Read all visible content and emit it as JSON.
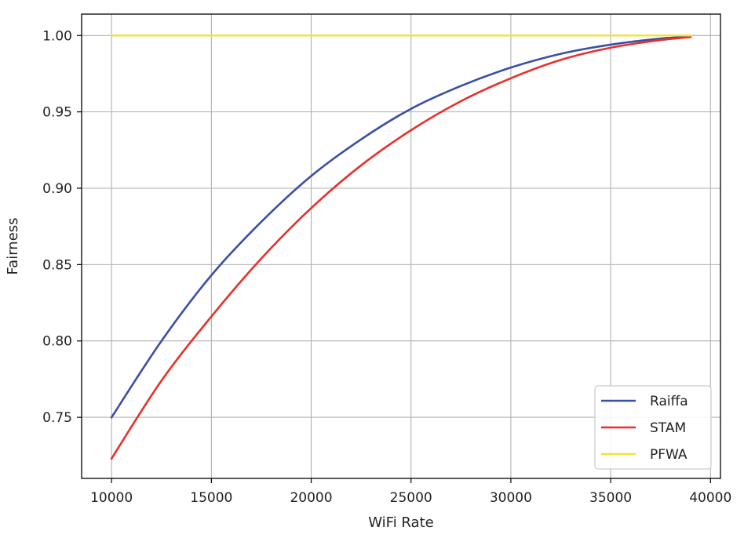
{
  "chart_data": {
    "type": "line",
    "title": "",
    "xlabel": "WiFi Rate",
    "ylabel": "Fairness",
    "xlim": [
      8500,
      40500
    ],
    "ylim": [
      0.71,
      1.014
    ],
    "xticks": [
      10000,
      15000,
      20000,
      25000,
      30000,
      35000,
      40000
    ],
    "yticks": [
      0.75,
      0.8,
      0.85,
      0.9,
      0.95,
      1.0
    ],
    "ytick_labels": [
      "0.75",
      "0.80",
      "0.85",
      "0.90",
      "0.95",
      "1.00"
    ],
    "grid": true,
    "legend_position": "lower-right",
    "series": [
      {
        "name": "Raiffa",
        "color": "#3a4fa6",
        "x": [
          10000,
          12500,
          15000,
          17500,
          20000,
          22500,
          25000,
          27500,
          30000,
          32500,
          35000,
          37500,
          39000
        ],
        "y": [
          0.75,
          0.8,
          0.843,
          0.878,
          0.908,
          0.932,
          0.952,
          0.967,
          0.979,
          0.988,
          0.994,
          0.998,
          0.999
        ]
      },
      {
        "name": "STAM",
        "color": "#e8302a",
        "x": [
          10000,
          12500,
          15000,
          17500,
          20000,
          22500,
          25000,
          27500,
          30000,
          32500,
          35000,
          37500,
          39000
        ],
        "y": [
          0.723,
          0.774,
          0.816,
          0.854,
          0.887,
          0.915,
          0.938,
          0.957,
          0.972,
          0.984,
          0.992,
          0.997,
          0.999
        ]
      },
      {
        "name": "PFWA",
        "color": "#f2e33c",
        "x": [
          10000,
          15000,
          20000,
          25000,
          30000,
          35000,
          39000
        ],
        "y": [
          1.0,
          1.0,
          1.0,
          1.0,
          1.0,
          1.0,
          1.0
        ]
      }
    ]
  }
}
